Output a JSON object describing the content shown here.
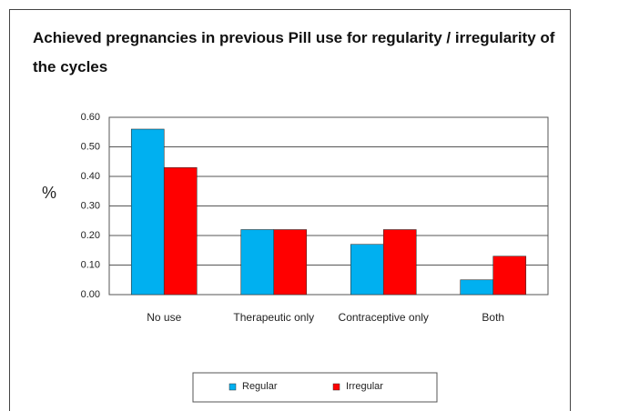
{
  "chart_data": {
    "type": "bar",
    "title": "Achieved pregnancies in previous Pill use for regularity / irregularity of the cycles",
    "y_label": "%",
    "categories": [
      "No use",
      "Therapeutic only",
      "Contraceptive only",
      "Both"
    ],
    "series": [
      {
        "name": "Regular",
        "color": "#00b0f0",
        "values": [
          0.56,
          0.22,
          0.17,
          0.05
        ]
      },
      {
        "name": "Irregular",
        "color": "#ff0000",
        "values": [
          0.43,
          0.22,
          0.22,
          0.13
        ]
      }
    ],
    "ylim": [
      0,
      0.6
    ],
    "yticks": [
      {
        "value": 0,
        "label": "0.00"
      },
      {
        "value": 0.1,
        "label": "0.10"
      },
      {
        "value": 0.2,
        "label": "0.20"
      },
      {
        "value": 0.3,
        "label": "0.30"
      },
      {
        "value": 0.4,
        "label": "0.40"
      },
      {
        "value": 0.5,
        "label": "0.50"
      },
      {
        "value": 0.6,
        "label": "0.60"
      }
    ],
    "grid": true,
    "legend": "bottom"
  }
}
